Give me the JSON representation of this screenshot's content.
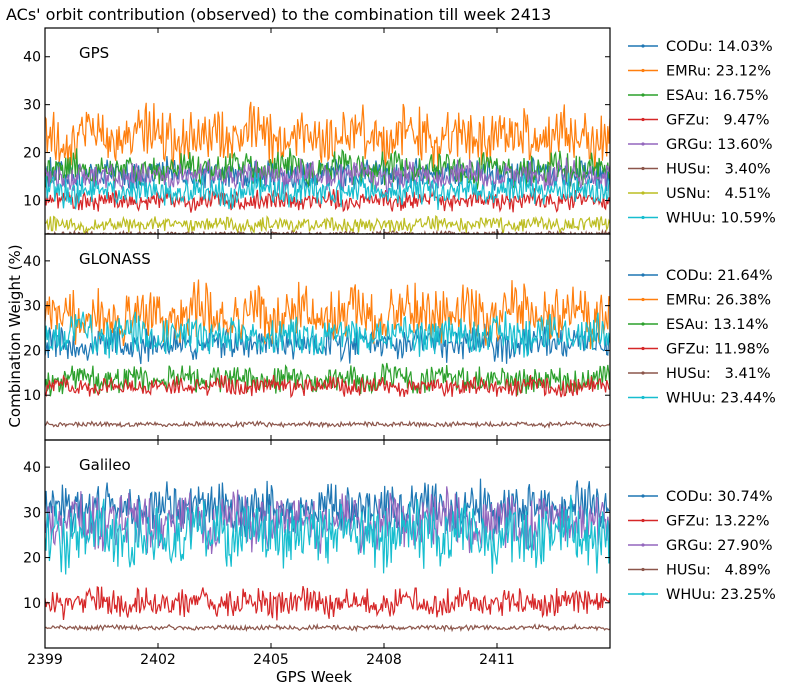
{
  "title": "ACs' orbit contribution (observed) to the combination till week 2413",
  "xlabel": "GPS Week",
  "ylabel": "Combination Weight (%)",
  "chart_data": [
    {
      "type": "line",
      "panel": "GPS",
      "xlim": [
        2399,
        2414
      ],
      "ylim": [
        3,
        46
      ],
      "x_ticks": [
        2399,
        2402,
        2405,
        2408,
        2411
      ],
      "y_ticks": [
        10,
        20,
        30,
        40
      ],
      "grid": false,
      "legend_position": "right",
      "series": [
        {
          "name": "CODu",
          "share": "14.03%",
          "color": "#1f77b4",
          "base": 15.5,
          "amp": 3
        },
        {
          "name": "EMRu",
          "share": "23.12%",
          "color": "#ff7f0e",
          "base": 23.5,
          "amp": 5.5
        },
        {
          "name": "ESAu",
          "share": "16.75%",
          "color": "#2ca02c",
          "base": 16.5,
          "amp": 3.5
        },
        {
          "name": "GFZu",
          "share": " 9.47%",
          "color": "#d62728",
          "base": 10,
          "amp": 2
        },
        {
          "name": "GRGu",
          "share": "13.60%",
          "color": "#9467bd",
          "base": 15,
          "amp": 3
        },
        {
          "name": "HUSu",
          "share": " 3.40%",
          "color": "#8c564b",
          "base": 3,
          "amp": 0.5
        },
        {
          "name": "USNu",
          "share": " 4.51%",
          "color": "#bcbd22",
          "base": 5,
          "amp": 1.5
        },
        {
          "name": "WHUu",
          "share": "10.59%",
          "color": "#17becf",
          "base": 12,
          "amp": 3
        }
      ]
    },
    {
      "type": "line",
      "panel": "GLONASS",
      "xlim": [
        2399,
        2414
      ],
      "ylim": [
        0,
        46
      ],
      "x_ticks": [
        2399,
        2402,
        2405,
        2408,
        2411
      ],
      "y_ticks": [
        10,
        20,
        30,
        40
      ],
      "grid": false,
      "legend_position": "right",
      "series": [
        {
          "name": "CODu",
          "share": "21.64%",
          "color": "#1f77b4",
          "base": 21.5,
          "amp": 3.5
        },
        {
          "name": "EMRu",
          "share": "26.38%",
          "color": "#ff7f0e",
          "base": 28,
          "amp": 6
        },
        {
          "name": "ESAu",
          "share": "13.14%",
          "color": "#2ca02c",
          "base": 13.5,
          "amp": 3
        },
        {
          "name": "GFZu",
          "share": "11.98%",
          "color": "#d62728",
          "base": 12,
          "amp": 2
        },
        {
          "name": "HUSu",
          "share": " 3.41%",
          "color": "#8c564b",
          "base": 3.5,
          "amp": 0.5
        },
        {
          "name": "WHUu",
          "share": "23.44%",
          "color": "#17becf",
          "base": 23.5,
          "amp": 4
        }
      ]
    },
    {
      "type": "line",
      "panel": "Galileo",
      "xlim": [
        2399,
        2414
      ],
      "ylim": [
        0,
        46
      ],
      "x_ticks": [
        2399,
        2402,
        2405,
        2408,
        2411
      ],
      "y_ticks": [
        10,
        20,
        30,
        40
      ],
      "grid": false,
      "legend_position": "right",
      "series": [
        {
          "name": "CODu",
          "share": "30.74%",
          "color": "#1f77b4",
          "base": 31,
          "amp": 5
        },
        {
          "name": "GFZu",
          "share": "13.22%",
          "color": "#d62728",
          "base": 10,
          "amp": 3
        },
        {
          "name": "GRGu",
          "share": "27.90%",
          "color": "#9467bd",
          "base": 28,
          "amp": 6
        },
        {
          "name": "HUSu",
          "share": " 4.89%",
          "color": "#8c564b",
          "base": 4.5,
          "amp": 0.5
        },
        {
          "name": "WHUu",
          "share": "23.25%",
          "color": "#17becf",
          "base": 25,
          "amp": 7
        }
      ]
    }
  ]
}
